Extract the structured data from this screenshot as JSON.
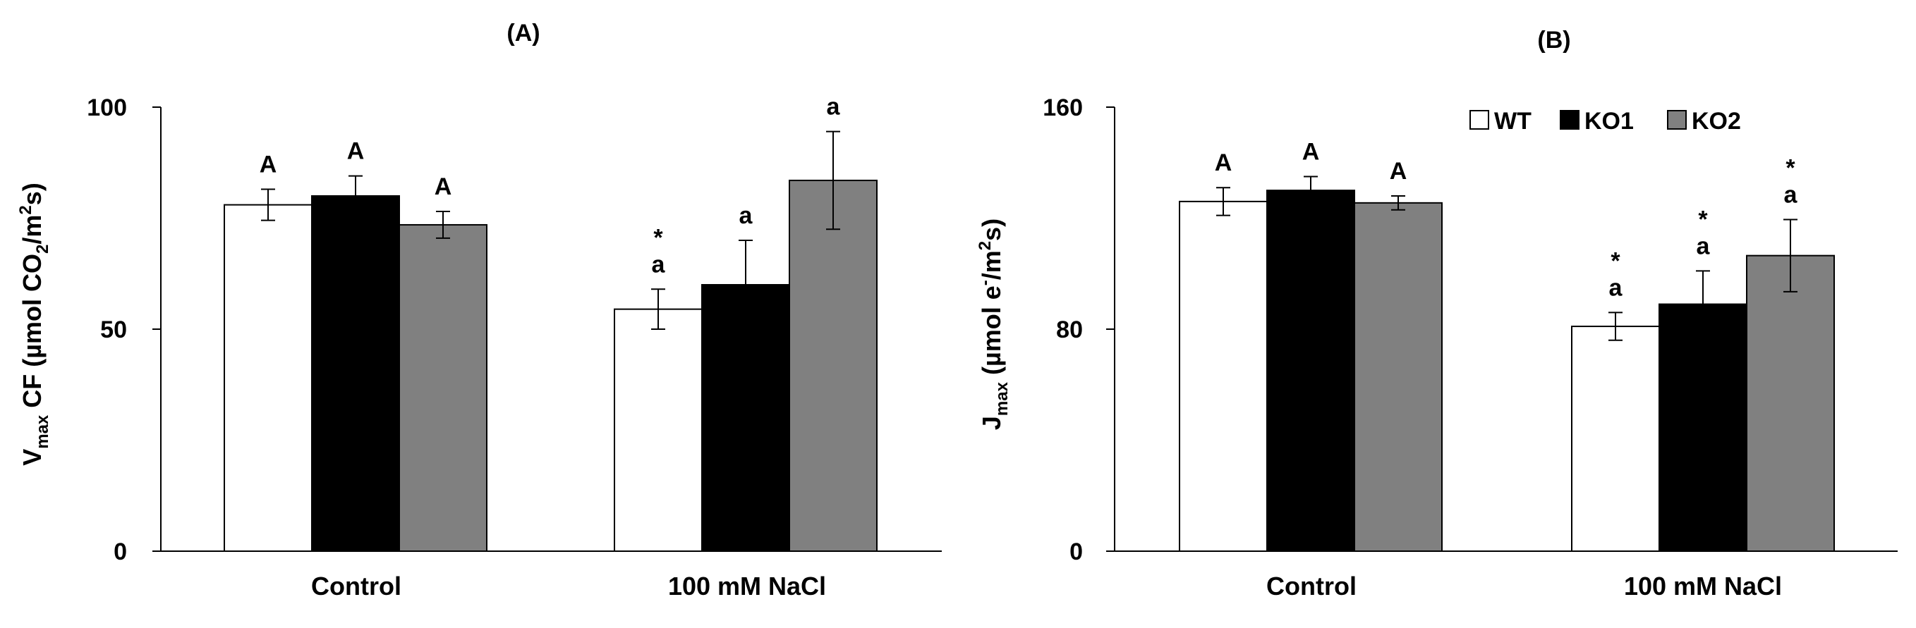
{
  "chart_data": [
    {
      "type": "bar",
      "panel_label": "(A)",
      "ylabel": {
        "base": "V",
        "sub": "max",
        "mid": " CF (µmol CO",
        "sub2": "2",
        "end": "/m",
        "sup": "2",
        "tail": "s)"
      },
      "categories": [
        "Control",
        "100 mM NaCl"
      ],
      "ylim": [
        0,
        100
      ],
      "yticks": [
        0,
        50,
        100
      ],
      "series": [
        {
          "name": "WT",
          "color": "#ffffff",
          "values": [
            78,
            54.5
          ],
          "errors": [
            3.5,
            4.5
          ],
          "labels": [
            [
              "A"
            ],
            [
              "a",
              "*"
            ]
          ]
        },
        {
          "name": "KO1",
          "color": "#000000",
          "values": [
            80,
            60
          ],
          "errors": [
            4.5,
            10
          ],
          "labels": [
            [
              "A"
            ],
            [
              "a"
            ]
          ]
        },
        {
          "name": "KO2",
          "color": "#808080",
          "values": [
            73.5,
            83.5
          ],
          "errors": [
            3,
            11
          ],
          "labels": [
            [
              "A"
            ],
            [
              "a"
            ]
          ]
        }
      ]
    },
    {
      "type": "bar",
      "panel_label": "(B)",
      "ylabel": {
        "base": "J",
        "sub": "max",
        "mid": " (µmol e",
        "sup1": "-",
        "end": "/m",
        "sup": "2",
        "tail": "s)"
      },
      "categories": [
        "Control",
        "100 mM NaCl"
      ],
      "ylim": [
        0,
        160
      ],
      "yticks": [
        0,
        80,
        160
      ],
      "legend": {
        "position": "top-right",
        "entries": [
          "WT",
          "KO1",
          "KO2"
        ]
      },
      "series": [
        {
          "name": "WT",
          "color": "#ffffff",
          "values": [
            126,
            81
          ],
          "errors": [
            5,
            5
          ],
          "labels": [
            [
              "A"
            ],
            [
              "a",
              "*"
            ]
          ]
        },
        {
          "name": "KO1",
          "color": "#000000",
          "values": [
            130,
            89
          ],
          "errors": [
            5,
            12
          ],
          "labels": [
            [
              "A"
            ],
            [
              "a",
              "*"
            ]
          ]
        },
        {
          "name": "KO2",
          "color": "#808080",
          "values": [
            125.5,
            106.5
          ],
          "errors": [
            2.5,
            13
          ],
          "labels": [
            [
              "A"
            ],
            [
              "a",
              "*"
            ]
          ]
        }
      ]
    }
  ]
}
